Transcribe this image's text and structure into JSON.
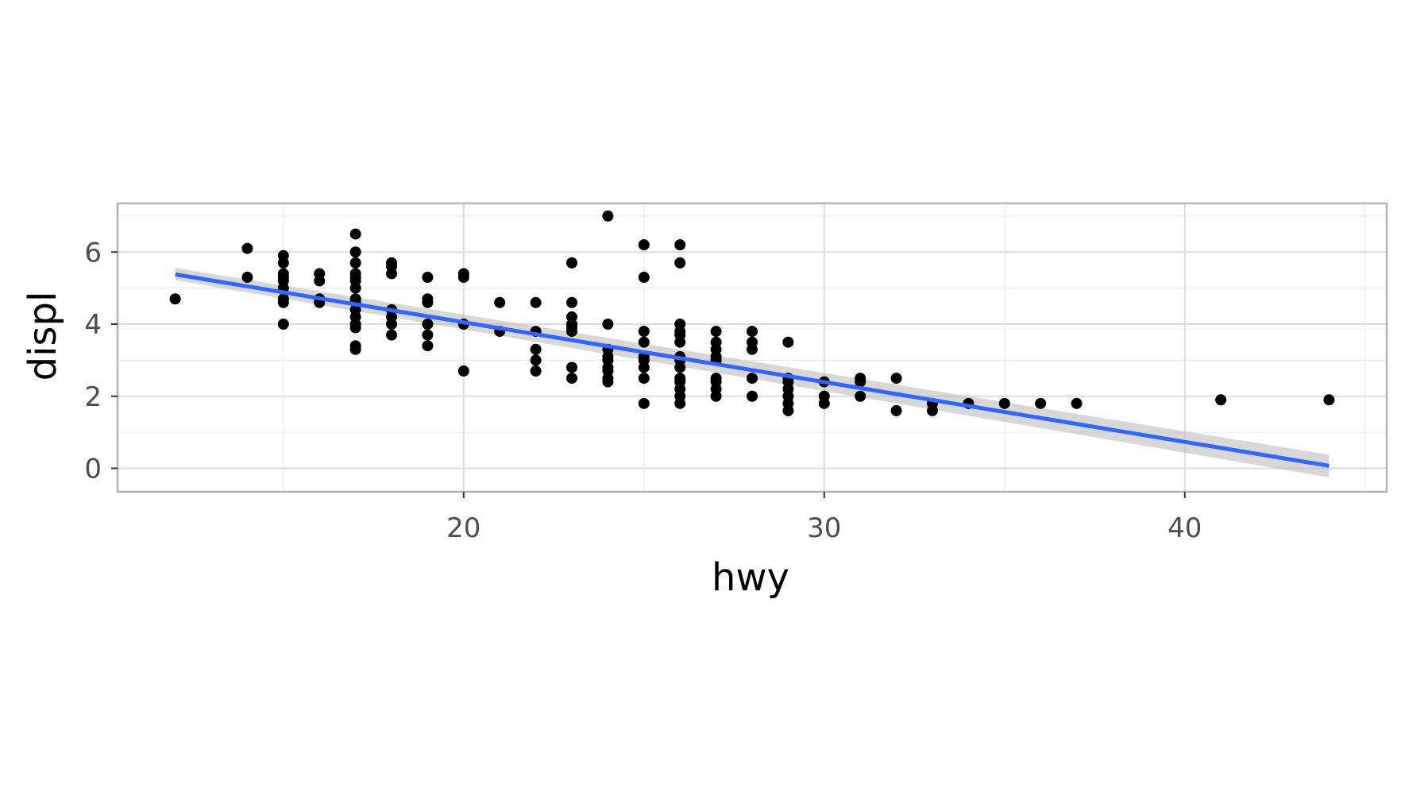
{
  "chart_data": {
    "type": "scatter",
    "title": "",
    "xlabel": "hwy",
    "ylabel": "displ",
    "xlim": [
      10.4,
      45.6
    ],
    "ylim": [
      -0.65,
      7.35
    ],
    "x_ticks": [
      20,
      30,
      40
    ],
    "x_tick_labels": [
      "20",
      "30",
      "40"
    ],
    "x_minor_ticks": [
      15,
      25,
      35,
      45
    ],
    "y_ticks": [
      0,
      2,
      4,
      6
    ],
    "y_tick_labels": [
      "0",
      "2",
      "4",
      "6"
    ],
    "y_minor_ticks": [
      1,
      3,
      5,
      7
    ],
    "grid": true,
    "legend": "none",
    "colors": {
      "points": "#000000",
      "smooth_line": "#3366ff",
      "ribbon": "#bdbdbd",
      "grid": "#dcdcdc",
      "border": "#b3b3b3"
    },
    "smooth": {
      "method": "linear",
      "x": [
        12,
        44
      ],
      "y": [
        5.38,
        0.07
      ],
      "se_lower": [
        5.22,
        -0.25
      ],
      "se_upper": [
        5.56,
        0.38
      ]
    },
    "points": {
      "x": [
        12,
        14,
        14,
        15,
        15,
        15,
        15,
        15,
        15,
        15,
        15,
        15,
        16,
        16,
        16,
        16,
        17,
        17,
        17,
        17,
        17,
        17,
        17,
        17,
        17,
        17,
        17,
        17,
        17,
        17,
        17,
        18,
        18,
        18,
        18,
        18,
        18,
        18,
        19,
        19,
        19,
        19,
        19,
        19,
        20,
        20,
        20,
        20,
        21,
        21,
        22,
        22,
        22,
        22,
        22,
        23,
        23,
        23,
        23,
        23,
        23,
        23,
        23,
        24,
        24,
        24,
        24,
        24,
        24,
        24,
        24,
        24,
        25,
        25,
        25,
        25,
        25,
        25,
        25,
        25,
        25,
        26,
        26,
        26,
        26,
        26,
        26,
        26,
        26,
        26,
        26,
        26,
        26,
        26,
        26,
        27,
        27,
        27,
        27,
        27,
        27,
        27,
        27,
        27,
        28,
        28,
        28,
        28,
        28,
        29,
        29,
        29,
        29,
        29,
        29,
        29,
        30,
        30,
        30,
        31,
        31,
        31,
        32,
        32,
        33,
        33,
        34,
        35,
        36,
        37,
        41,
        44
      ],
      "y": [
        4.7,
        6.1,
        5.3,
        5.9,
        5.7,
        5.4,
        5.3,
        5.2,
        4.7,
        4.6,
        4.0,
        5.0,
        5.4,
        5.2,
        4.7,
        4.6,
        6.5,
        6.0,
        5.7,
        5.4,
        5.3,
        5.2,
        5.0,
        4.7,
        4.6,
        4.2,
        4.0,
        3.9,
        3.4,
        3.3,
        4.4,
        5.7,
        5.6,
        5.4,
        4.4,
        4.2,
        4.0,
        3.7,
        5.3,
        4.7,
        4.6,
        4.0,
        3.7,
        3.4,
        5.4,
        5.3,
        4.0,
        2.7,
        4.6,
        3.8,
        4.6,
        3.8,
        3.3,
        3.0,
        2.7,
        5.7,
        4.6,
        4.2,
        4.0,
        3.8,
        2.8,
        2.5,
        3.9,
        7.0,
        4.0,
        3.3,
        3.1,
        3.0,
        2.8,
        2.7,
        2.5,
        2.4,
        6.2,
        5.3,
        3.8,
        3.5,
        3.1,
        3.0,
        2.8,
        2.5,
        1.8,
        6.2,
        5.7,
        4.0,
        3.8,
        3.7,
        3.5,
        3.1,
        3.0,
        2.8,
        2.5,
        2.4,
        2.2,
        2.0,
        1.8,
        3.8,
        3.5,
        3.3,
        3.1,
        3.0,
        2.5,
        2.4,
        2.2,
        2.0,
        3.8,
        3.5,
        3.3,
        2.5,
        2.0,
        3.5,
        2.5,
        2.4,
        2.2,
        2.0,
        1.8,
        1.6,
        2.4,
        2.0,
        1.8,
        2.5,
        2.4,
        2.0,
        2.5,
        1.6,
        1.8,
        1.6,
        1.8,
        1.8,
        1.8,
        1.8,
        1.9,
        1.9
      ]
    }
  }
}
